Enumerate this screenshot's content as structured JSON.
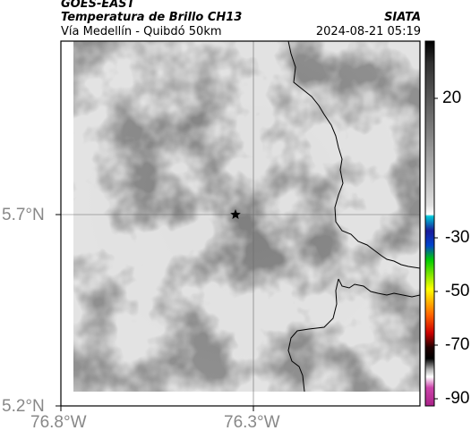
{
  "header": {
    "satellite": "GOES-EAST",
    "product": "Temperatura de Brillo CH13",
    "route": "Vía Medellín - Quibdó 50km",
    "org": "SIATA",
    "datetime": "2024-08-21 05:19"
  },
  "map": {
    "lat_ticks": [
      "5.7°N",
      "5.2°N"
    ],
    "lon_ticks": [
      "76.8°W",
      "76.3°W"
    ],
    "marker": "star-marker"
  },
  "colorbar": {
    "labels": [
      "20",
      "-30",
      "-50",
      "-70",
      "-90"
    ],
    "colors": [
      "#000000",
      "#7a7a7a",
      "#ffffff",
      "#00c8d8",
      "#1a1a9a",
      "#00cc00",
      "#ffff00",
      "#ff6600",
      "#cc0000",
      "#000000",
      "#ffffff",
      "#cc44aa"
    ]
  }
}
